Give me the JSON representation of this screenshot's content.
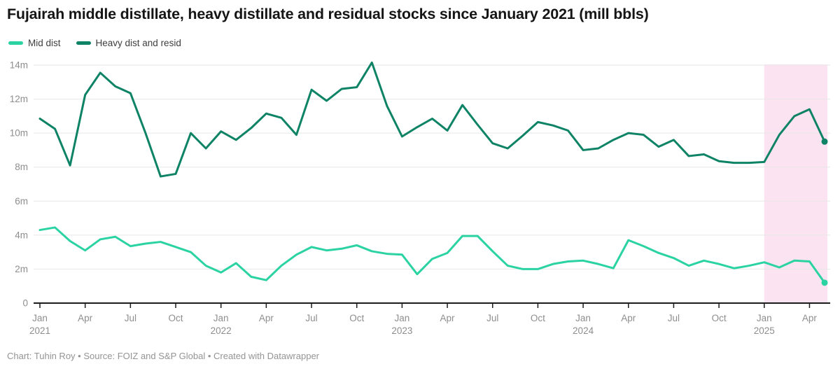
{
  "title": "Fujairah middle distillate, heavy distillate and residual stocks since January 2021 (mill bbls)",
  "footer": "Chart: Tuhin Roy • Source: FOIZ and S&P Global • Created with Datawrapper",
  "legend": [
    {
      "label": "Mid dist",
      "color": "#2bd3a3"
    },
    {
      "label": "Heavy dist and resid",
      "color": "#0e8365"
    }
  ],
  "colors": {
    "mid_dist": "#2bd3a3",
    "heavy_dist": "#0e8365",
    "highlight_pink": "#fce3f1",
    "gridline": "#e7e7e7",
    "axis": "#1c1c1c",
    "tick_label": "#8e8e8e"
  },
  "chart_data": {
    "type": "line",
    "title": "Fujairah middle distillate, heavy distillate and residual stocks since January 2021 (mill bbls)",
    "x_start": "Jan 2021",
    "x_end": "May 2025",
    "ylim": [
      0,
      14
    ],
    "grid": "horizontal",
    "legend_position": "top-left",
    "y_ticks": [
      "0",
      "2m",
      "4m",
      "6m",
      "8m",
      "10m",
      "12m",
      "14m"
    ],
    "x_ticks": [
      {
        "i": 0,
        "label": "Jan",
        "year": "2021"
      },
      {
        "i": 3,
        "label": "Apr"
      },
      {
        "i": 6,
        "label": "Jul"
      },
      {
        "i": 9,
        "label": "Oct"
      },
      {
        "i": 12,
        "label": "Jan",
        "year": "2022"
      },
      {
        "i": 15,
        "label": "Apr"
      },
      {
        "i": 18,
        "label": "Jul"
      },
      {
        "i": 21,
        "label": "Oct"
      },
      {
        "i": 24,
        "label": "Jan",
        "year": "2023"
      },
      {
        "i": 27,
        "label": "Apr"
      },
      {
        "i": 30,
        "label": "Jul"
      },
      {
        "i": 33,
        "label": "Oct"
      },
      {
        "i": 36,
        "label": "Jan",
        "year": "2024"
      },
      {
        "i": 39,
        "label": "Apr"
      },
      {
        "i": 42,
        "label": "Jul"
      },
      {
        "i": 45,
        "label": "Oct"
      },
      {
        "i": 48,
        "label": "Jan",
        "year": "2025"
      },
      {
        "i": 51,
        "label": "Apr"
      }
    ],
    "highlight": {
      "from_index": 48,
      "to_index": 52,
      "color": "#fce3f1"
    },
    "series": [
      {
        "name": "Mid dist",
        "color": "#2bd3a3",
        "values": [
          4.3,
          4.45,
          3.65,
          3.1,
          3.75,
          3.9,
          3.35,
          3.5,
          3.6,
          3.3,
          3.0,
          2.2,
          1.8,
          2.35,
          1.55,
          1.35,
          2.2,
          2.85,
          3.3,
          3.1,
          3.2,
          3.4,
          3.05,
          2.9,
          2.85,
          1.7,
          2.6,
          2.95,
          3.95,
          3.95,
          3.05,
          2.2,
          2.0,
          2.0,
          2.3,
          2.45,
          2.5,
          2.3,
          2.05,
          3.7,
          3.35,
          2.95,
          2.65,
          2.2,
          2.5,
          2.3,
          2.05,
          2.2,
          2.4,
          2.1,
          2.5,
          2.45,
          1.2
        ]
      },
      {
        "name": "Heavy dist and resid",
        "color": "#0e8365",
        "values": [
          10.85,
          10.25,
          8.1,
          12.25,
          13.55,
          12.75,
          12.35,
          10.0,
          7.45,
          7.6,
          10.0,
          9.1,
          10.1,
          9.6,
          10.3,
          11.15,
          10.9,
          9.9,
          12.55,
          11.9,
          12.6,
          12.7,
          14.15,
          11.6,
          9.8,
          10.35,
          10.85,
          10.15,
          11.65,
          10.5,
          9.4,
          9.1,
          9.85,
          10.65,
          10.45,
          10.15,
          9.0,
          9.1,
          9.6,
          10.0,
          9.9,
          9.2,
          9.6,
          8.65,
          8.75,
          8.35,
          8.25,
          8.25,
          8.3,
          9.9,
          11.0,
          11.4,
          9.5
        ]
      }
    ]
  }
}
